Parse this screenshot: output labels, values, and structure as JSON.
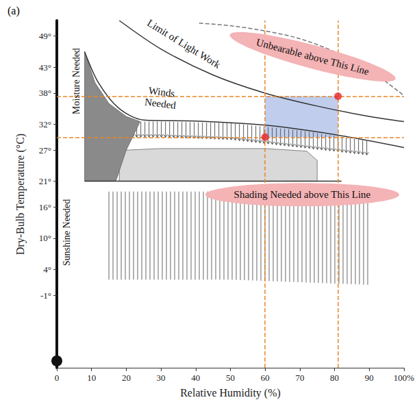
{
  "chart_data": {
    "type": "scatter",
    "title": "(a)",
    "xlabel": "Relative Humidity (%)",
    "ylabel": "Dry-Bulb Temperature (°C)",
    "xlim": [
      0,
      100
    ],
    "xticks": [
      0,
      10,
      20,
      30,
      40,
      50,
      60,
      70,
      80,
      90,
      {
        "value": 100,
        "label": "100%"
      }
    ],
    "ylim": [
      -15,
      52
    ],
    "yticks": [
      {
        "value": -1,
        "label": "-1°"
      },
      {
        "value": 4,
        "label": "4°"
      },
      {
        "value": 10,
        "label": "10°"
      },
      {
        "value": 16,
        "label": "16°"
      },
      {
        "value": 21,
        "label": "21°"
      },
      {
        "value": 27,
        "label": "27°"
      },
      {
        "value": 32,
        "label": "32°"
      },
      {
        "value": 38,
        "label": "38°"
      },
      {
        "value": 43,
        "label": "43°"
      },
      {
        "value": 49,
        "label": "49°"
      }
    ],
    "grid": false,
    "annotations": [
      "Moisture Needed",
      "Limit of Light Work",
      "Winds Needed",
      "Unbearable above This Line",
      "Shading Needed above This Line",
      "Sunshine Needed"
    ],
    "series": [
      {
        "type": "area",
        "color": "#d9d9d9",
        "x": [
          18,
          18,
          20,
          30,
          60,
          72,
          75,
          75
        ],
        "values": [
          21,
          25,
          27,
          27.3,
          27.3,
          26.8,
          25,
          21
        ]
      },
      {
        "type": "hatch",
        "color": "#555555",
        "marker": "arrow",
        "x": [
          10,
          30,
          50,
          70,
          90
        ],
        "values": [
          32.5,
          32.5,
          32.2,
          30.8,
          28.7
        ],
        "lower": [
          29.5,
          29.5,
          29,
          27.5,
          26
        ]
      },
      {
        "type": "area",
        "color": "#8a8a8a",
        "x": [
          8,
          8,
          11,
          15,
          20,
          24,
          20,
          17
        ],
        "values": [
          21,
          46,
          40,
          36,
          33.5,
          32.5,
          27,
          21
        ]
      },
      {
        "type": "line",
        "color": "#333333",
        "line_style": "solid",
        "x": [
          8,
          12,
          18,
          25,
          40,
          60,
          80,
          100
        ],
        "values": [
          46,
          40,
          35,
          32.8,
          32.6,
          31.8,
          30,
          27.5
        ]
      },
      {
        "type": "line",
        "color": "#333333",
        "line_style": "solid",
        "x": [
          8,
          82
        ],
        "values": [
          21,
          21
        ]
      },
      {
        "type": "line",
        "color": "#333333",
        "line_style": "solid",
        "x": [
          18,
          30,
          45,
          60,
          75,
          90,
          100
        ],
        "values": [
          52,
          46.5,
          41.5,
          38,
          35.5,
          33.5,
          32.5
        ]
      },
      {
        "type": "line",
        "color": "#777777",
        "line_style": "dashed",
        "x": [
          41,
          50,
          60,
          70,
          80,
          90,
          100
        ],
        "values": [
          51.5,
          51,
          50,
          48.5,
          46,
          42.5,
          37.5
        ]
      },
      {
        "type": "hatch",
        "color": "#666666",
        "x": [
          15,
          50,
          90
        ],
        "values": [
          19,
          19,
          19
        ],
        "lower": [
          2,
          2,
          1
        ]
      },
      {
        "color": "#e8262b",
        "x": [
          60,
          81
        ],
        "values": [
          29.5,
          37.4
        ]
      }
    ]
  }
}
